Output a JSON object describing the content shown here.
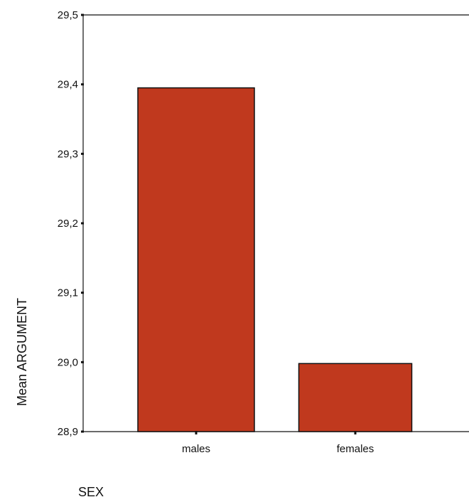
{
  "chart_data": {
    "type": "bar",
    "categories": [
      "males",
      "females"
    ],
    "values": [
      29.395,
      28.998
    ],
    "ylim": [
      28.9,
      29.5
    ],
    "yticks": [
      "28,9",
      "29,0",
      "29,1",
      "29,2",
      "29,3",
      "29,4",
      "29,5"
    ],
    "ylabel": "Mean ARGUMENT",
    "xlabel": "SEX",
    "grid": false,
    "bar_color": "#c0391e"
  }
}
